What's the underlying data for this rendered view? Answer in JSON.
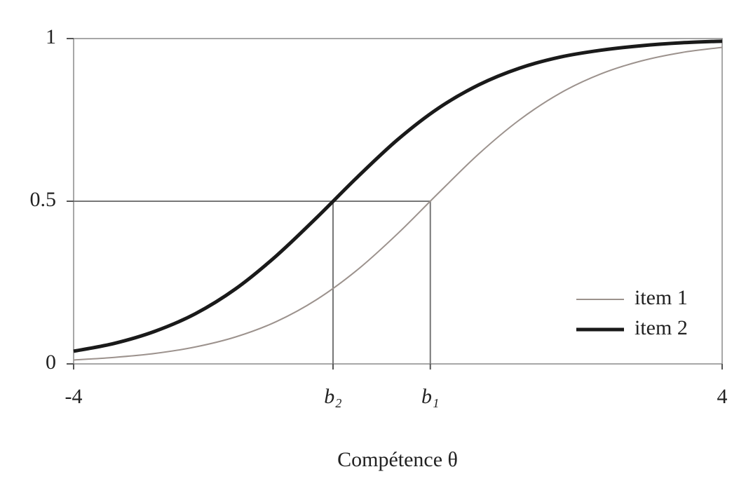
{
  "chart_data": {
    "type": "line",
    "x_label": "Compétence θ",
    "x": [
      -4,
      -3.5,
      -3,
      -2.5,
      -2,
      -1.5,
      -1,
      -0.5,
      0,
      0.5,
      1,
      1.5,
      2,
      2.5,
      3,
      3.5,
      4
    ],
    "series": [
      {
        "name": "item 1",
        "color": "#9c928d",
        "values": [
          0.012,
          0.02,
          0.032,
          0.052,
          0.083,
          0.13,
          0.198,
          0.289,
          0.401,
          0.525,
          0.646,
          0.75,
          0.832,
          0.891,
          0.931,
          0.957,
          0.973
        ]
      },
      {
        "name": "item 2",
        "color": "#1a1a1a",
        "values": [
          0.039,
          0.063,
          0.1,
          0.154,
          0.231,
          0.332,
          0.45,
          0.574,
          0.69,
          0.786,
          0.858,
          0.909,
          0.943,
          0.964,
          0.978,
          0.987,
          0.992
        ]
      }
    ],
    "xlim": [
      -4,
      4
    ],
    "ylim": [
      0,
      1
    ],
    "xticks": [
      -4,
      {
        "value": -0.8,
        "label": "b₂"
      },
      {
        "value": 0.4,
        "label": "b₁"
      },
      4
    ],
    "yticks": [
      0,
      0.5,
      1
    ],
    "grid": false,
    "legend": "lower right"
  }
}
